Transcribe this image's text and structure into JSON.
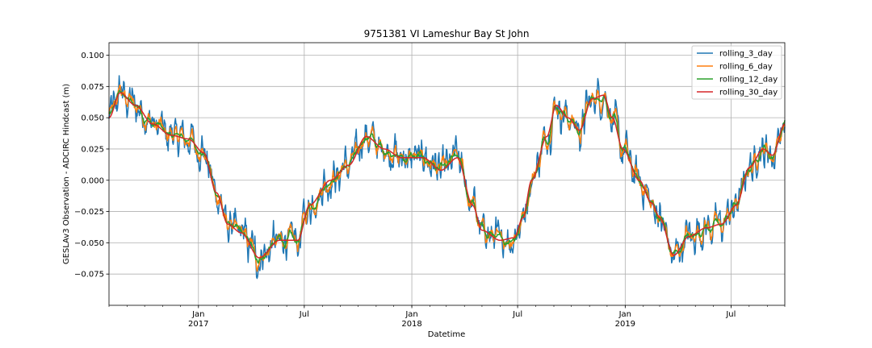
{
  "chart_data": {
    "type": "line",
    "title": "9751381 VI Lameshur Bay St John",
    "xlabel": "Datetime",
    "ylabel": "GESLAv3 Observation - ADCIRC Hindcast (m)",
    "x_range": [
      "2016-08-01",
      "2019-10-01"
    ],
    "ylim": [
      -0.1,
      0.11
    ],
    "grid": true,
    "legend_position": "top-right",
    "x_ticks": [
      {
        "date": "2017-01-01",
        "label": "Jan",
        "sublabel": "2017"
      },
      {
        "date": "2017-07-01",
        "label": "Jul",
        "sublabel": ""
      },
      {
        "date": "2018-01-01",
        "label": "Jan",
        "sublabel": "2018"
      },
      {
        "date": "2018-07-01",
        "label": "Jul",
        "sublabel": ""
      },
      {
        "date": "2019-01-01",
        "label": "Jan",
        "sublabel": "2019"
      },
      {
        "date": "2019-07-01",
        "label": "Jul",
        "sublabel": ""
      }
    ],
    "y_ticks": [
      {
        "value": -0.075,
        "label": "−0.075"
      },
      {
        "value": -0.05,
        "label": "−0.050"
      },
      {
        "value": -0.025,
        "label": "−0.025"
      },
      {
        "value": 0.0,
        "label": "0.000"
      },
      {
        "value": 0.025,
        "label": "0.025"
      },
      {
        "value": 0.05,
        "label": "0.050"
      },
      {
        "value": 0.075,
        "label": "0.075"
      },
      {
        "value": 0.1,
        "label": "0.100"
      }
    ],
    "series": [
      {
        "name": "rolling_3_day",
        "color": "#1f77b4",
        "noise": 0.011
      },
      {
        "name": "rolling_6_day",
        "color": "#ff7f0e",
        "noise": 0.007
      },
      {
        "name": "rolling_12_day",
        "color": "#2ca02c",
        "noise": 0.004
      },
      {
        "name": "rolling_30_day",
        "color": "#d62728",
        "noise": 0.0
      }
    ],
    "trend": [
      {
        "x": "2016-08-01",
        "y": 0.05
      },
      {
        "x": "2016-08-20",
        "y": 0.07
      },
      {
        "x": "2016-09-15",
        "y": 0.06
      },
      {
        "x": "2016-10-15",
        "y": 0.045
      },
      {
        "x": "2016-11-15",
        "y": 0.036
      },
      {
        "x": "2016-12-15",
        "y": 0.033
      },
      {
        "x": "2017-01-10",
        "y": 0.022
      },
      {
        "x": "2017-02-01",
        "y": -0.01
      },
      {
        "x": "2017-02-20",
        "y": -0.035
      },
      {
        "x": "2017-03-15",
        "y": -0.042
      },
      {
        "x": "2017-04-15",
        "y": -0.062
      },
      {
        "x": "2017-05-20",
        "y": -0.048
      },
      {
        "x": "2017-06-20",
        "y": -0.048
      },
      {
        "x": "2017-07-10",
        "y": -0.02
      },
      {
        "x": "2017-08-15",
        "y": 0.0
      },
      {
        "x": "2017-09-15",
        "y": 0.012
      },
      {
        "x": "2017-10-15",
        "y": 0.035
      },
      {
        "x": "2017-11-15",
        "y": 0.025
      },
      {
        "x": "2017-12-15",
        "y": 0.018
      },
      {
        "x": "2018-01-20",
        "y": 0.018
      },
      {
        "x": "2018-02-20",
        "y": 0.008
      },
      {
        "x": "2018-03-20",
        "y": 0.018
      },
      {
        "x": "2018-04-15",
        "y": -0.02
      },
      {
        "x": "2018-05-01",
        "y": -0.04
      },
      {
        "x": "2018-06-01",
        "y": -0.048
      },
      {
        "x": "2018-06-25",
        "y": -0.046
      },
      {
        "x": "2018-07-10",
        "y": -0.03
      },
      {
        "x": "2018-07-25",
        "y": 0.0
      },
      {
        "x": "2018-08-20",
        "y": 0.035
      },
      {
        "x": "2018-09-05",
        "y": 0.06
      },
      {
        "x": "2018-09-25",
        "y": 0.05
      },
      {
        "x": "2018-10-15",
        "y": 0.04
      },
      {
        "x": "2018-11-05",
        "y": 0.065
      },
      {
        "x": "2018-11-25",
        "y": 0.068
      },
      {
        "x": "2018-12-10",
        "y": 0.05
      },
      {
        "x": "2018-12-28",
        "y": 0.025
      },
      {
        "x": "2019-01-25",
        "y": 0.0
      },
      {
        "x": "2019-02-15",
        "y": -0.018
      },
      {
        "x": "2019-03-01",
        "y": -0.03
      },
      {
        "x": "2019-03-25",
        "y": -0.06
      },
      {
        "x": "2019-04-20",
        "y": -0.045
      },
      {
        "x": "2019-05-20",
        "y": -0.038
      },
      {
        "x": "2019-06-15",
        "y": -0.035
      },
      {
        "x": "2019-07-10",
        "y": -0.02
      },
      {
        "x": "2019-08-01",
        "y": 0.01
      },
      {
        "x": "2019-08-25",
        "y": 0.025
      },
      {
        "x": "2019-09-10",
        "y": 0.02
      },
      {
        "x": "2019-10-01",
        "y": 0.045
      }
    ]
  }
}
